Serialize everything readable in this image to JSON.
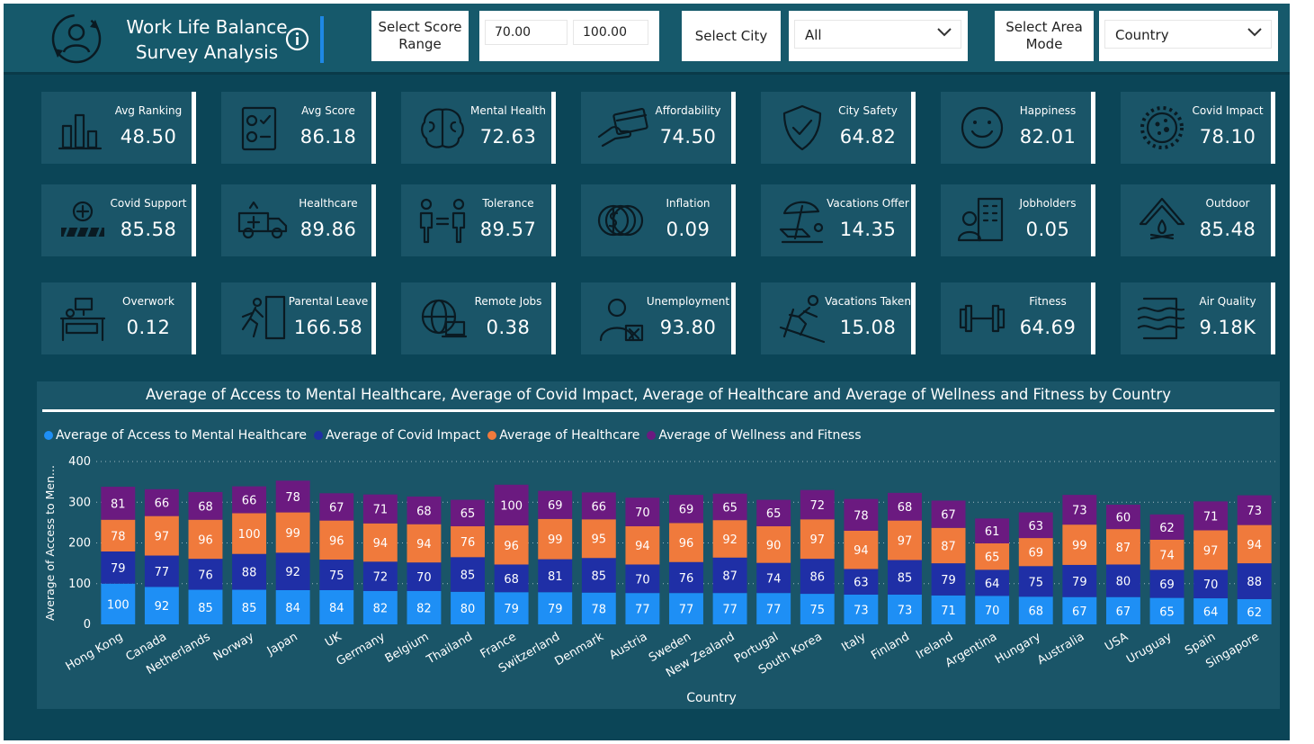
{
  "header": {
    "title_line1": "Work Life Balance",
    "title_line2": "Survey Analysis",
    "logo_icon": "user-sync-icon",
    "info_icon": "info-icon"
  },
  "slicers": {
    "score_range_label": "Select Score Range",
    "score_min": "70.00",
    "score_max": "100.00",
    "city_label": "Select City",
    "city_value": "All",
    "area_label": "Select Area Mode",
    "area_value": "Country"
  },
  "cards": [
    {
      "label": "Avg Ranking",
      "value": "48.50",
      "icon": "bar-chart-icon"
    },
    {
      "label": "Avg Score",
      "value": "86.18",
      "icon": "checklist-icon"
    },
    {
      "label": "Mental Health",
      "value": "72.63",
      "icon": "brain-icon"
    },
    {
      "label": "Affordability",
      "value": "74.50",
      "icon": "card-payment-icon"
    },
    {
      "label": "City Safety",
      "value": "64.82",
      "icon": "shield-check-icon"
    },
    {
      "label": "Happiness",
      "value": "82.01",
      "icon": "smiley-icon"
    },
    {
      "label": "Covid Impact",
      "value": "78.10",
      "icon": "virus-icon"
    },
    {
      "label": "Covid Support",
      "value": "85.58",
      "icon": "medical-barrier-icon"
    },
    {
      "label": "Healthcare",
      "value": "89.86",
      "icon": "ambulance-icon"
    },
    {
      "label": "Tolerance",
      "value": "89.57",
      "icon": "equality-icon"
    },
    {
      "label": "Inflation",
      "value": "0.09",
      "icon": "coins-icon"
    },
    {
      "label": "Vacations Offer",
      "value": "14.35",
      "icon": "beach-umbrella-icon"
    },
    {
      "label": "Jobholders",
      "value": "0.05",
      "icon": "office-worker-icon"
    },
    {
      "label": "Outdoor",
      "value": "85.48",
      "icon": "campfire-tent-icon"
    },
    {
      "label": "Overwork",
      "value": "0.12",
      "icon": "desk-sleep-icon"
    },
    {
      "label": "Parental Leave",
      "value": "166.58",
      "icon": "exit-running-icon"
    },
    {
      "label": "Remote Jobs",
      "value": "0.38",
      "icon": "globe-laptop-icon"
    },
    {
      "label": "Unemployment",
      "value": "93.80",
      "icon": "jobless-person-icon"
    },
    {
      "label": "Vacations Taken",
      "value": "15.08",
      "icon": "skier-icon"
    },
    {
      "label": "Fitness",
      "value": "64.69",
      "icon": "dumbbell-icon"
    },
    {
      "label": "Air Quality",
      "value": "9.18K",
      "icon": "air-waves-icon"
    }
  ],
  "chart_data": {
    "type": "bar",
    "stacked": true,
    "title": "Average of Access to Mental Healthcare, Average of Covid Impact, Average of Healthcare and Average of Wellness and Fitness by Country",
    "xlabel": "Country",
    "ylabel": "Average of Access to Men...",
    "ylim": [
      0,
      400
    ],
    "yticks": [
      0,
      100,
      200,
      300,
      400
    ],
    "grid": true,
    "legend_position": "top-left",
    "categories": [
      "Hong Kong",
      "Canada",
      "Netherlands",
      "Norway",
      "Japan",
      "UK",
      "Germany",
      "Belgium",
      "Thailand",
      "France",
      "Switzerland",
      "Denmark",
      "Austria",
      "Sweden",
      "New Zealand",
      "Portugal",
      "South Korea",
      "Italy",
      "Finland",
      "Ireland",
      "Argentina",
      "Hungary",
      "Australia",
      "USA",
      "Uruguay",
      "Spain",
      "Singapore"
    ],
    "series": [
      {
        "name": "Average of Access to Mental Healthcare",
        "color": "#1e8ff5",
        "values": [
          100,
          92,
          85,
          85,
          84,
          84,
          82,
          82,
          80,
          79,
          79,
          78,
          77,
          77,
          77,
          77,
          75,
          73,
          73,
          71,
          70,
          68,
          67,
          67,
          65,
          64,
          62
        ]
      },
      {
        "name": "Average of Covid Impact",
        "color": "#1f2fa6",
        "values": [
          79,
          77,
          76,
          88,
          92,
          75,
          72,
          70,
          85,
          68,
          81,
          85,
          70,
          76,
          87,
          74,
          86,
          63,
          85,
          79,
          64,
          75,
          79,
          80,
          69,
          70,
          88
        ]
      },
      {
        "name": "Average of Healthcare",
        "color": "#f07a3c",
        "values": [
          78,
          97,
          96,
          100,
          99,
          96,
          94,
          94,
          76,
          96,
          99,
          95,
          94,
          96,
          92,
          90,
          97,
          94,
          97,
          87,
          65,
          69,
          99,
          87,
          74,
          97,
          94
        ]
      },
      {
        "name": "Average of Wellness and Fitness",
        "color": "#6b1a80",
        "values": [
          81,
          66,
          68,
          66,
          78,
          67,
          71,
          68,
          65,
          100,
          69,
          66,
          70,
          69,
          65,
          65,
          72,
          78,
          68,
          67,
          61,
          63,
          73,
          60,
          62,
          71,
          73
        ]
      }
    ]
  }
}
